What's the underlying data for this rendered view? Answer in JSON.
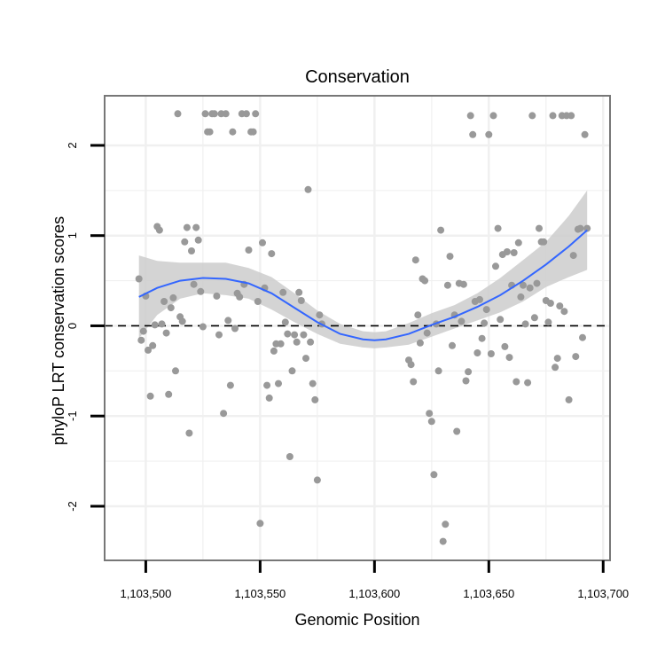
{
  "chart_data": {
    "type": "scatter",
    "title": "Conservation",
    "xlabel": "Genomic Position",
    "ylabel": "phyloP LRT conservation scores",
    "xlim": [
      1103482,
      1103703
    ],
    "ylim": [
      -2.6,
      2.55
    ],
    "xticks": [
      1103500,
      1103550,
      1103600,
      1103650,
      1103700
    ],
    "xtick_labels": [
      "1,103,500",
      "1,103,550",
      "1,103,600",
      "1,103,650",
      "1,103,700"
    ],
    "yticks": [
      -2,
      -1,
      0,
      1,
      2
    ],
    "ytick_labels": [
      "-2",
      "-1",
      "0",
      "1",
      "2"
    ],
    "grid": true,
    "reference_line": {
      "y": 0,
      "style": "dashed"
    },
    "colors": {
      "points": "#999999",
      "smooth": "#3366ff",
      "band": "#cccccc",
      "panel_border": "#777777",
      "grid": "#f0f0f0"
    },
    "points": [
      [
        1103497,
        0.52
      ],
      [
        1103498,
        -0.16
      ],
      [
        1103499,
        -0.06
      ],
      [
        1103500,
        0.33
      ],
      [
        1103501,
        -0.27
      ],
      [
        1103502,
        -0.78
      ],
      [
        1103503,
        -0.22
      ],
      [
        1103504,
        0.01
      ],
      [
        1103505,
        1.1
      ],
      [
        1103506,
        1.06
      ],
      [
        1103507,
        0.02
      ],
      [
        1103508,
        0.27
      ],
      [
        1103509,
        -0.08
      ],
      [
        1103510,
        -0.76
      ],
      [
        1103511,
        0.2
      ],
      [
        1103512,
        0.31
      ],
      [
        1103513,
        -0.5
      ],
      [
        1103514,
        2.35
      ],
      [
        1103515,
        0.1
      ],
      [
        1103516,
        0.05
      ],
      [
        1103517,
        0.93
      ],
      [
        1103518,
        1.09
      ],
      [
        1103519,
        -1.19
      ],
      [
        1103520,
        0.83
      ],
      [
        1103521,
        0.46
      ],
      [
        1103522,
        1.09
      ],
      [
        1103523,
        0.95
      ],
      [
        1103524,
        0.38
      ],
      [
        1103525,
        -0.01
      ],
      [
        1103526,
        2.35
      ],
      [
        1103527,
        2.15
      ],
      [
        1103528,
        2.15
      ],
      [
        1103529,
        2.35
      ],
      [
        1103530,
        2.35
      ],
      [
        1103531,
        0.33
      ],
      [
        1103532,
        -0.1
      ],
      [
        1103533,
        2.35
      ],
      [
        1103534,
        -0.97
      ],
      [
        1103535,
        2.35
      ],
      [
        1103536,
        0.06
      ],
      [
        1103537,
        -0.66
      ],
      [
        1103538,
        2.15
      ],
      [
        1103539,
        -0.03
      ],
      [
        1103540,
        0.36
      ],
      [
        1103541,
        0.32
      ],
      [
        1103542,
        2.35
      ],
      [
        1103543,
        0.46
      ],
      [
        1103544,
        2.35
      ],
      [
        1103545,
        0.84
      ],
      [
        1103546,
        2.15
      ],
      [
        1103547,
        2.15
      ],
      [
        1103548,
        2.35
      ],
      [
        1103549,
        0.27
      ],
      [
        1103550,
        -2.19
      ],
      [
        1103551,
        0.92
      ],
      [
        1103552,
        0.42
      ],
      [
        1103553,
        -0.66
      ],
      [
        1103554,
        -0.8
      ],
      [
        1103555,
        0.8
      ],
      [
        1103556,
        -0.28
      ],
      [
        1103557,
        -0.2
      ],
      [
        1103558,
        -0.64
      ],
      [
        1103559,
        -0.2
      ],
      [
        1103560,
        0.37
      ],
      [
        1103561,
        0.04
      ],
      [
        1103562,
        -0.09
      ],
      [
        1103563,
        -1.45
      ],
      [
        1103564,
        -0.5
      ],
      [
        1103565,
        -0.1
      ],
      [
        1103566,
        -0.18
      ],
      [
        1103567,
        0.37
      ],
      [
        1103568,
        0.28
      ],
      [
        1103569,
        -0.1
      ],
      [
        1103570,
        -0.36
      ],
      [
        1103571,
        1.51
      ],
      [
        1103572,
        -0.18
      ],
      [
        1103573,
        -0.64
      ],
      [
        1103574,
        -0.82
      ],
      [
        1103575,
        -1.71
      ],
      [
        1103576,
        0.12
      ],
      [
        1103577,
        0.02
      ],
      [
        1103615,
        -0.38
      ],
      [
        1103616,
        -0.43
      ],
      [
        1103617,
        -0.62
      ],
      [
        1103618,
        0.73
      ],
      [
        1103619,
        0.12
      ],
      [
        1103620,
        -0.19
      ],
      [
        1103621,
        0.52
      ],
      [
        1103622,
        0.5
      ],
      [
        1103623,
        -0.08
      ],
      [
        1103624,
        -0.97
      ],
      [
        1103625,
        -1.06
      ],
      [
        1103626,
        -1.65
      ],
      [
        1103627,
        0.02
      ],
      [
        1103628,
        -0.5
      ],
      [
        1103629,
        1.06
      ],
      [
        1103630,
        -2.39
      ],
      [
        1103631,
        -2.2
      ],
      [
        1103632,
        0.45
      ],
      [
        1103633,
        0.77
      ],
      [
        1103634,
        -0.22
      ],
      [
        1103635,
        0.12
      ],
      [
        1103636,
        -1.17
      ],
      [
        1103637,
        0.47
      ],
      [
        1103638,
        0.05
      ],
      [
        1103639,
        0.46
      ],
      [
        1103640,
        -0.61
      ],
      [
        1103641,
        -0.51
      ],
      [
        1103642,
        2.33
      ],
      [
        1103643,
        2.12
      ],
      [
        1103644,
        0.27
      ],
      [
        1103645,
        -0.3
      ],
      [
        1103646,
        0.29
      ],
      [
        1103647,
        -0.14
      ],
      [
        1103648,
        0.03
      ],
      [
        1103649,
        0.18
      ],
      [
        1103650,
        2.12
      ],
      [
        1103651,
        -0.31
      ],
      [
        1103652,
        2.33
      ],
      [
        1103653,
        0.66
      ],
      [
        1103654,
        1.08
      ],
      [
        1103655,
        0.07
      ],
      [
        1103656,
        0.79
      ],
      [
        1103657,
        -0.23
      ],
      [
        1103658,
        0.82
      ],
      [
        1103659,
        -0.35
      ],
      [
        1103660,
        0.45
      ],
      [
        1103661,
        0.81
      ],
      [
        1103662,
        -0.62
      ],
      [
        1103663,
        0.92
      ],
      [
        1103664,
        0.32
      ],
      [
        1103665,
        0.45
      ],
      [
        1103666,
        0.02
      ],
      [
        1103667,
        -0.63
      ],
      [
        1103668,
        0.42
      ],
      [
        1103669,
        2.33
      ],
      [
        1103670,
        0.09
      ],
      [
        1103671,
        0.47
      ],
      [
        1103672,
        1.08
      ],
      [
        1103673,
        0.93
      ],
      [
        1103674,
        0.93
      ],
      [
        1103675,
        0.28
      ],
      [
        1103676,
        0.04
      ],
      [
        1103677,
        0.25
      ],
      [
        1103678,
        2.33
      ],
      [
        1103679,
        -0.46
      ],
      [
        1103680,
        -0.36
      ],
      [
        1103681,
        0.22
      ],
      [
        1103682,
        2.33
      ],
      [
        1103683,
        0.16
      ],
      [
        1103684,
        2.33
      ],
      [
        1103685,
        -0.82
      ],
      [
        1103686,
        2.33
      ],
      [
        1103687,
        0.78
      ],
      [
        1103688,
        -0.34
      ],
      [
        1103689,
        1.07
      ],
      [
        1103690,
        1.08
      ],
      [
        1103691,
        -0.13
      ],
      [
        1103692,
        2.12
      ],
      [
        1103693,
        1.08
      ]
    ],
    "smooth": {
      "x": [
        1103497,
        1103505,
        1103515,
        1103525,
        1103535,
        1103545,
        1103555,
        1103565,
        1103575,
        1103585,
        1103595,
        1103600,
        1103605,
        1103615,
        1103625,
        1103635,
        1103645,
        1103655,
        1103665,
        1103675,
        1103685,
        1103693
      ],
      "y": [
        0.32,
        0.42,
        0.5,
        0.53,
        0.52,
        0.47,
        0.36,
        0.2,
        0.04,
        -0.09,
        -0.15,
        -0.16,
        -0.15,
        -0.09,
        0.01,
        0.1,
        0.21,
        0.34,
        0.5,
        0.68,
        0.88,
        1.06
      ],
      "lower": [
        -0.14,
        0.12,
        0.3,
        0.36,
        0.34,
        0.3,
        0.18,
        0.04,
        -0.09,
        -0.2,
        -0.24,
        -0.25,
        -0.24,
        -0.21,
        -0.12,
        -0.03,
        0.06,
        0.15,
        0.27,
        0.43,
        0.54,
        0.62
      ],
      "upper": [
        0.78,
        0.72,
        0.7,
        0.7,
        0.7,
        0.64,
        0.54,
        0.36,
        0.17,
        0.02,
        -0.06,
        -0.07,
        -0.06,
        0.03,
        0.14,
        0.23,
        0.36,
        0.53,
        0.73,
        0.93,
        1.22,
        1.5
      ]
    }
  }
}
